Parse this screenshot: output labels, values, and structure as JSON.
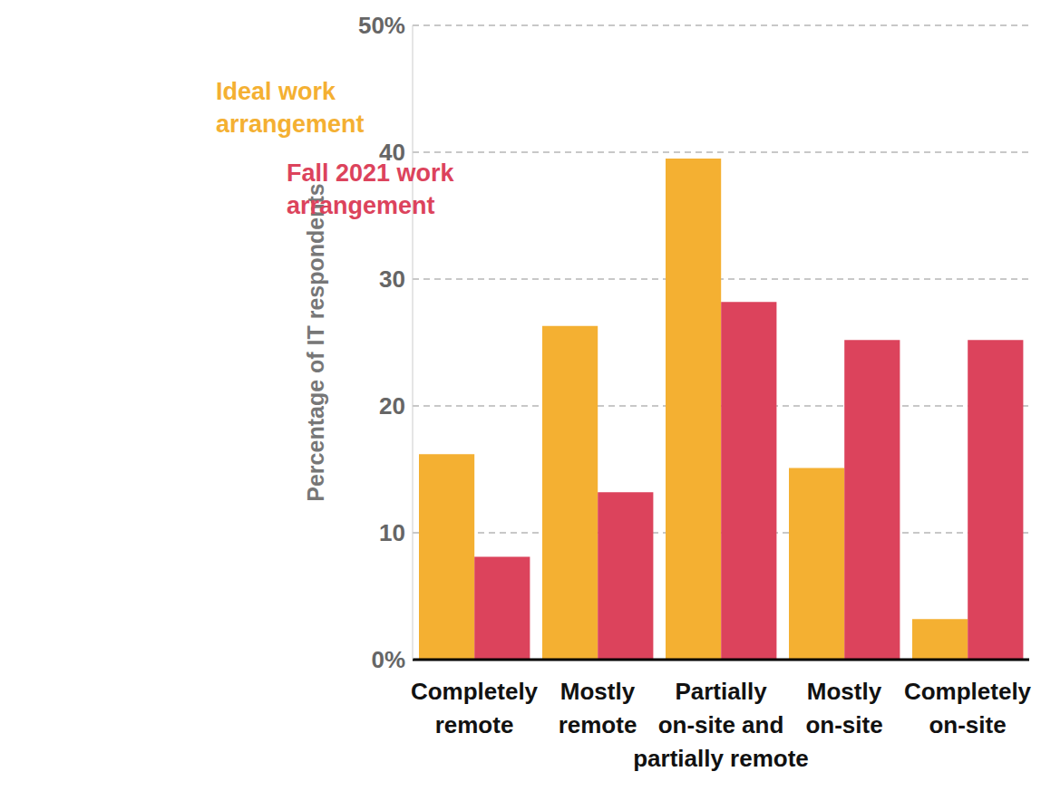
{
  "chart_data": {
    "type": "bar",
    "y_label": "Percentage of IT respondents",
    "categories": [
      "Completely remote",
      "Mostly remote",
      "Partially on-site and partially remote",
      "Mostly on-site",
      "Completely on-site"
    ],
    "series": [
      {
        "name": "Ideal work arrangement",
        "color": "#f4b032",
        "values": [
          16.2,
          26.3,
          39.5,
          15.1,
          3.2
        ]
      },
      {
        "name": "Fall 2021 work arrangement",
        "color": "#dc435c",
        "values": [
          8.1,
          13.2,
          28.2,
          25.2,
          25.2
        ]
      }
    ],
    "ylim": [
      0,
      50
    ],
    "yticks": [
      {
        "value": 0,
        "label": "0%"
      },
      10,
      20,
      30,
      40,
      {
        "value": 50,
        "label": "50%"
      }
    ],
    "grid": true,
    "legend": "upper left"
  }
}
